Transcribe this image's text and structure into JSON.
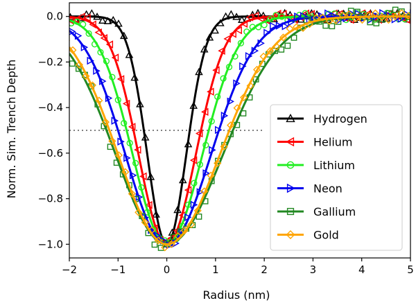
{
  "chart_data": {
    "type": "line",
    "title": "",
    "xlabel": "Radius (nm)",
    "ylabel": "Norm. Sim. Trench Depth",
    "xlim": [
      -2,
      5
    ],
    "ylim": [
      -1.06,
      0.06
    ],
    "xticks": [
      -2,
      -1,
      0,
      1,
      2,
      3,
      4,
      5
    ],
    "xtick_labels": [
      "−2",
      "−1",
      "0",
      "1",
      "2",
      "3",
      "4",
      "5"
    ],
    "yticks": [
      0.0,
      -0.2,
      -0.4,
      -0.6,
      -0.8,
      -1.0
    ],
    "ytick_labels": [
      "0.0",
      "−0.2",
      "−0.4",
      "−0.6",
      "−0.8",
      "−1.0"
    ],
    "reference_line": {
      "y": -0.5,
      "x_range": [
        -2,
        2
      ],
      "style": "dotted",
      "color": "#808080"
    },
    "legend_position": "center-right",
    "series": [
      {
        "name": "Hydrogen",
        "color": "#000000",
        "marker": "triangle-up",
        "sigma": 0.4,
        "amp": 1.0
      },
      {
        "name": "Helium",
        "color": "#ff0000",
        "marker": "triangle-left",
        "sigma": 0.58,
        "amp": 1.0
      },
      {
        "name": "Lithium",
        "color": "#22ee22",
        "marker": "circle",
        "sigma": 0.7,
        "amp": 1.0
      },
      {
        "name": "Neon",
        "color": "#0000ee",
        "marker": "triangle-right",
        "sigma": 0.85,
        "amp": 1.0
      },
      {
        "name": "Gallium",
        "color": "#228822",
        "marker": "square",
        "sigma": 1.05,
        "amp": 1.0
      },
      {
        "name": "Gold",
        "color": "#ffa500",
        "marker": "diamond",
        "sigma": 1.0,
        "amp": 1.0
      }
    ]
  }
}
